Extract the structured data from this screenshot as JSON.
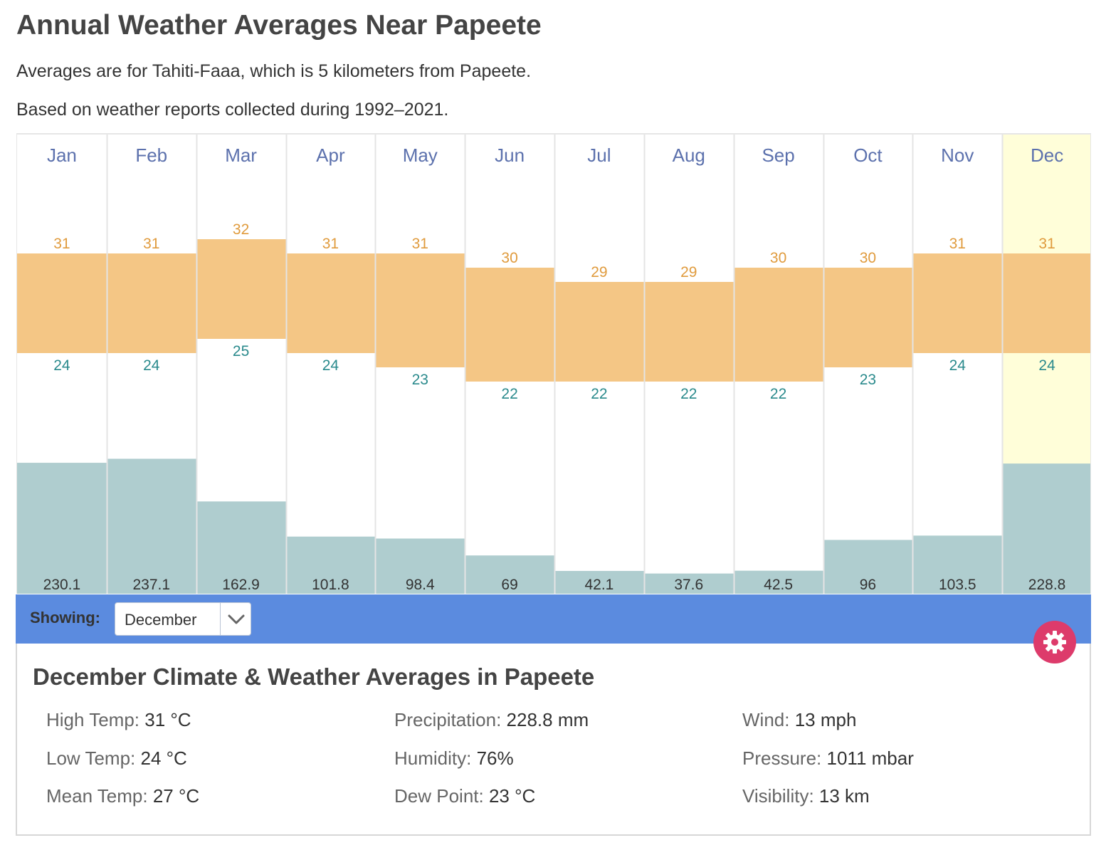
{
  "page": {
    "title": "Annual Weather Averages Near Papeete",
    "subtitle_1": "Averages are for Tahiti-Faaa, which is 5 kilometers from Papeete.",
    "subtitle_2": "Based on weather reports collected during 1992–2021."
  },
  "colors": {
    "temp_band": "#f4c685",
    "high_label": "#e09b3d",
    "low_label": "#2a8a8c",
    "precip_bar": "#afcdcf",
    "month_label": "#5c71ad",
    "selected_column": "#fffed9",
    "showing_bar": "#5b8bdf",
    "gear_button": "#dd3b6b"
  },
  "chart_data": {
    "type": "bar",
    "categories": [
      "Jan",
      "Feb",
      "Mar",
      "Apr",
      "May",
      "Jun",
      "Jul",
      "Aug",
      "Sep",
      "Oct",
      "Nov",
      "Dec"
    ],
    "series": [
      {
        "name": "High Temp",
        "values": [
          31,
          31,
          32,
          31,
          31,
          30,
          29,
          29,
          30,
          30,
          31,
          31
        ]
      },
      {
        "name": "Low Temp",
        "values": [
          24,
          24,
          25,
          24,
          23,
          22,
          22,
          22,
          22,
          23,
          24,
          24
        ]
      },
      {
        "name": "Precipitation",
        "values": [
          230.1,
          237.1,
          162.9,
          101.8,
          98.4,
          69,
          42.1,
          37.6,
          42.5,
          96,
          103.5,
          228.8
        ]
      }
    ],
    "highlighted_category": "Dec"
  },
  "selector": {
    "label": "Showing:",
    "value": "December"
  },
  "details": {
    "title": "December Climate & Weather Averages in Papeete",
    "high_temp": {
      "label": "High Temp:",
      "value": "31 °C"
    },
    "low_temp": {
      "label": "Low Temp:",
      "value": "24 °C"
    },
    "mean_temp": {
      "label": "Mean Temp:",
      "value": "27 °C"
    },
    "precipitation": {
      "label": "Precipitation:",
      "value": "228.8 mm"
    },
    "humidity": {
      "label": "Humidity:",
      "value": "76%"
    },
    "dew_point": {
      "label": "Dew Point:",
      "value": "23 °C"
    },
    "wind": {
      "label": "Wind:",
      "value": "13 mph"
    },
    "pressure": {
      "label": "Pressure:",
      "value": "1011 mbar"
    },
    "visibility": {
      "label": "Visibility:",
      "value": "13 km"
    }
  },
  "icons": {
    "settings": "gear-icon",
    "select_arrow": "chevron-down-icon"
  }
}
